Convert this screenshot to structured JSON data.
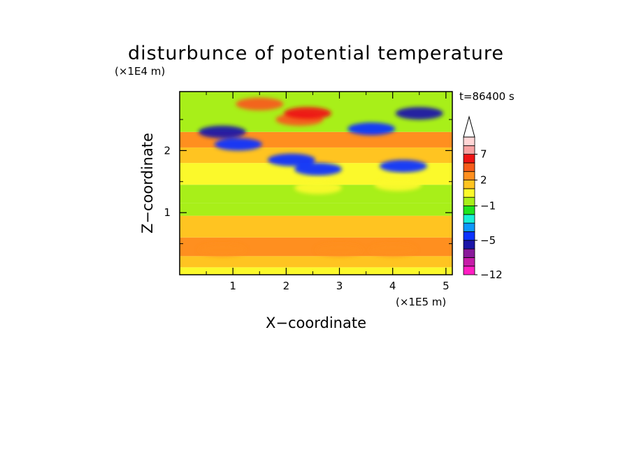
{
  "chart_data": {
    "type": "heatmap",
    "title": "disturbunce of potential temperature",
    "time_label": "t=86400 s",
    "xlabel": "X−coordinate",
    "ylabel": "Z−coordinate",
    "x_unit": "(×1E5 m)",
    "y_unit": "(×1E4 m)",
    "xlim": [
      0,
      5.12
    ],
    "ylim": [
      0,
      2.95
    ],
    "xticks": [
      1,
      2,
      3,
      4,
      5
    ],
    "xtick_labels": [
      "1",
      "2",
      "3",
      "4",
      "5"
    ],
    "yticks": [
      1,
      2
    ],
    "ytick_labels": [
      "1",
      "2"
    ],
    "colorbar": {
      "levels": [
        -12,
        -10,
        -8,
        -6,
        -5,
        -4,
        -3,
        -2,
        -1,
        0,
        1,
        2,
        3,
        5,
        7,
        9,
        12
      ],
      "colors": [
        "#ff1dc3",
        "#c61ca8",
        "#8a199a",
        "#1b15a8",
        "#0c33ff",
        "#0d98fb",
        "#19f0d7",
        "#20e51e",
        "#a8ef19",
        "#fbf92b",
        "#ffc421",
        "#ff8f1f",
        "#f75c1a",
        "#ef1414",
        "#f8a2a2",
        "#ffd6d6"
      ],
      "labels": [
        "7",
        "2",
        "−1",
        "−5",
        "−12"
      ],
      "label_values": [
        7,
        2,
        -1,
        -5,
        -12
      ],
      "extend_max": true
    },
    "field_bands": [
      {
        "z_range": [
          0.0,
          0.12
        ],
        "level": "0 to 1"
      },
      {
        "z_range": [
          0.12,
          0.3
        ],
        "level": "1 to 2"
      },
      {
        "z_range": [
          0.3,
          0.6
        ],
        "level": "2 to 3"
      },
      {
        "z_range": [
          0.6,
          0.95
        ],
        "level": "1 to 2"
      },
      {
        "z_range": [
          0.95,
          1.15
        ],
        "level": "-1 to 0"
      },
      {
        "z_range": [
          1.15,
          1.45
        ],
        "level": "-1 to 0"
      },
      {
        "z_range": [
          1.45,
          1.8
        ],
        "level": "0 to 1"
      },
      {
        "z_range": [
          1.8,
          2.05
        ],
        "level": "1 to 2"
      },
      {
        "z_range": [
          2.05,
          2.3
        ],
        "level": "2 to 3"
      },
      {
        "z_range": [
          2.3,
          2.95
        ],
        "level": "-1 to 0"
      }
    ],
    "features": [
      {
        "x": 0.8,
        "z": 0.4,
        "level": "2 to 3"
      },
      {
        "x": 3.0,
        "z": 0.4,
        "level": "2 to 3"
      },
      {
        "x": 4.0,
        "z": 0.4,
        "level": "2 to 3"
      },
      {
        "x": 2.25,
        "z": 2.5,
        "level": "3 to 5"
      },
      {
        "x": 2.4,
        "z": 2.6,
        "level": "5 to 7"
      },
      {
        "x": 2.6,
        "z": 1.7,
        "level": "-5 to -4"
      },
      {
        "x": 4.2,
        "z": 1.75,
        "level": "-5 to -4"
      },
      {
        "x": 0.8,
        "z": 2.3,
        "level": "-6 to -5"
      },
      {
        "x": 1.1,
        "z": 2.1,
        "level": "-5 to -4"
      },
      {
        "x": 3.6,
        "z": 2.35,
        "level": "-5 to -4"
      },
      {
        "x": 4.5,
        "z": 2.6,
        "level": "-6 to -5"
      },
      {
        "x": 2.1,
        "z": 1.85,
        "level": "-5 to -4"
      },
      {
        "x": 1.5,
        "z": 2.75,
        "level": "3 to 5"
      },
      {
        "x": 4.1,
        "z": 1.45,
        "level": "0 to 1"
      },
      {
        "x": 2.6,
        "z": 1.4,
        "level": "0 to 1"
      }
    ]
  }
}
